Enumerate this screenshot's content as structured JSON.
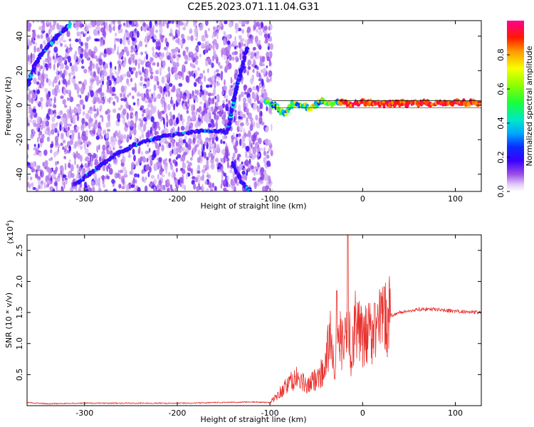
{
  "title": "C2E5.2023.071.11.04.G31",
  "chart_data": [
    {
      "type": "heatmap",
      "xlabel": "Height of straight line (km)",
      "ylabel": "Frequency (Hz)",
      "xlim": [
        -362,
        128
      ],
      "ylim": [
        -50,
        49
      ],
      "xticks": [
        -300,
        -200,
        -100,
        0,
        100
      ],
      "xtick_labels": [
        "-300",
        "-200",
        "-100",
        "0",
        "100"
      ],
      "yticks": [
        -40,
        -20,
        0,
        20,
        40
      ],
      "ytick_labels": [
        "-40",
        "-20",
        "0",
        "20",
        "40"
      ],
      "noise_region_x": [
        -362,
        -98
      ],
      "colorbar": {
        "label": "Normalized spectral amplitude",
        "range": [
          0.0,
          1.0
        ],
        "ticks": [
          0.0,
          0.2,
          0.4,
          0.6,
          0.8
        ],
        "tick_labels": [
          "0.0",
          "0.2",
          "0.4",
          "0.6",
          "0.8"
        ],
        "colormap": [
          "#ffffff",
          "#e0c8f8",
          "#8a2be2",
          "#3b00ff",
          "#0000ff",
          "#00bfff",
          "#00ff7f",
          "#7cfc00",
          "#ffff00",
          "#ff8c00",
          "#ff0000",
          "#ff00aa"
        ]
      },
      "traces": [
        {
          "x": [
            -362,
            -355,
            -345,
            -335,
            -325,
            -315
          ],
          "y": [
            10,
            22,
            31,
            37,
            42,
            47
          ],
          "amplitude": 0.3
        },
        {
          "x": [
            -310,
            -295,
            -280,
            -265,
            -250,
            -235,
            -220,
            -205,
            -190,
            -175,
            -160,
            -150,
            -145
          ],
          "y": [
            -46,
            -40,
            -34,
            -28,
            -24,
            -21,
            -19,
            -17,
            -16,
            -15,
            -15,
            -15,
            -16
          ],
          "amplitude": 0.3
        },
        {
          "x": [
            -145,
            -140,
            -135,
            -130,
            -127,
            -124
          ],
          "y": [
            -14,
            0,
            12,
            22,
            28,
            34
          ],
          "amplitude": 0.3
        },
        {
          "x": [
            -140,
            -135,
            -130,
            -125,
            -120
          ],
          "y": [
            -34,
            -40,
            -45,
            -48,
            -50
          ],
          "amplitude": 0.25
        },
        {
          "x": [
            -105,
            -95,
            -85,
            -75,
            -65,
            -55,
            -45,
            -35,
            -25,
            -15,
            -5,
            5,
            20,
            40,
            60,
            80,
            100,
            128
          ],
          "y": [
            2,
            0,
            -5,
            1,
            0,
            -2,
            3,
            1,
            2,
            1,
            1,
            2,
            1,
            1,
            1,
            1,
            2,
            1
          ],
          "amplitude": 0.9
        }
      ]
    },
    {
      "type": "line",
      "xlabel": "Height of straight line (km)",
      "ylabel": "SNR (10 * v/v)",
      "yscale_label": "(x10",
      "yscale_exp": "4",
      "xlim": [
        -362,
        128
      ],
      "ylim": [
        0.0,
        2.75
      ],
      "xticks": [
        -300,
        -200,
        -100,
        0,
        100
      ],
      "xtick_labels": [
        "-300",
        "-200",
        "-100",
        "0",
        "100"
      ],
      "yticks": [
        0.5,
        1.0,
        1.5,
        2.0,
        2.5
      ],
      "ytick_labels": [
        "0.5",
        "1.0",
        "1.5",
        "2.0",
        "2.5"
      ],
      "line_color": "#e8322f",
      "series": [
        {
          "x": [
            -362,
            -340,
            -300,
            -250,
            -200,
            -150,
            -120,
            -100,
            -90,
            -80,
            -70,
            -60,
            -50,
            -40,
            -35,
            -30,
            -25,
            -20,
            -16,
            -12,
            -8,
            -4,
            0,
            5,
            10,
            15,
            20,
            30,
            40,
            60,
            80,
            100,
            128
          ],
          "values": [
            0.05,
            0.03,
            0.04,
            0.04,
            0.04,
            0.05,
            0.06,
            0.05,
            0.2,
            0.35,
            0.45,
            0.3,
            0.45,
            0.6,
            1.2,
            0.7,
            1.1,
            0.9,
            1.3,
            0.8,
            1.4,
            1.2,
            1.05,
            1.15,
            1.2,
            1.25,
            1.35,
            1.45,
            1.5,
            1.55,
            1.55,
            1.52,
            1.5
          ]
        }
      ]
    }
  ]
}
